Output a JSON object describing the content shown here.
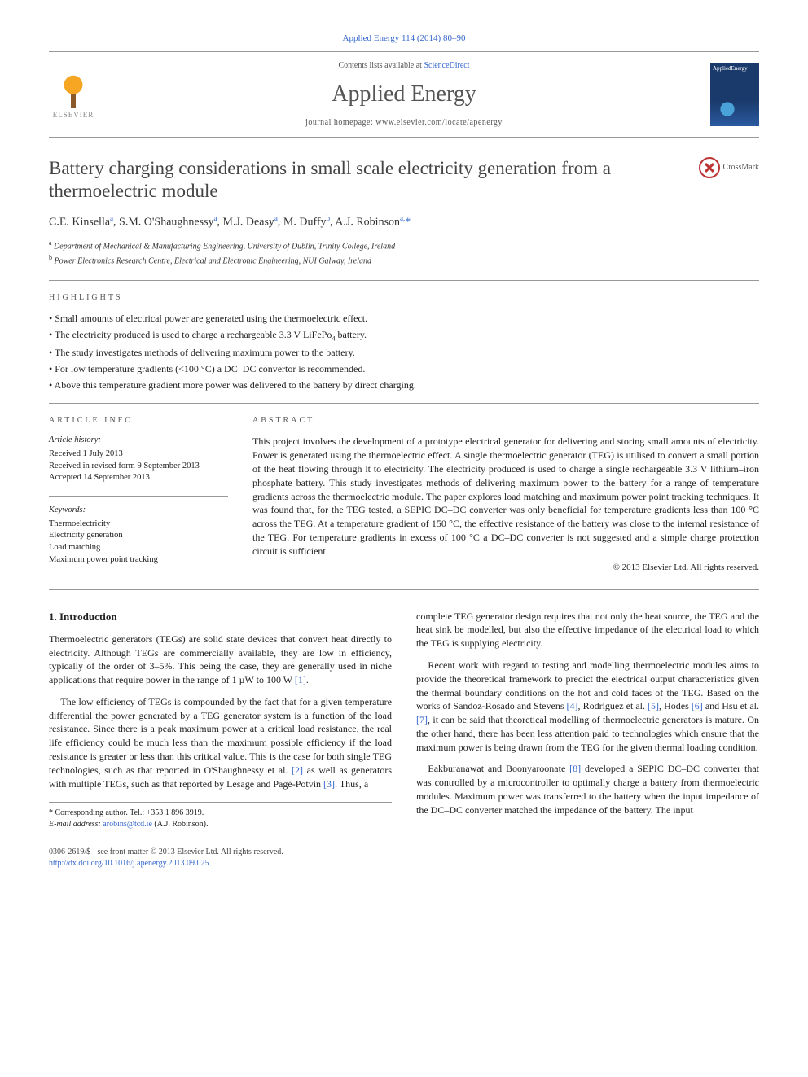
{
  "citation": "Applied Energy 114 (2014) 80–90",
  "header": {
    "publisher_name": "ELSEVIER",
    "contents_prefix": "Contents lists available at ",
    "contents_link": "ScienceDirect",
    "journal": "Applied Energy",
    "homepage_prefix": "journal homepage: ",
    "homepage_url": "www.elsevier.com/locate/apenergy",
    "cover_label": "AppliedEnergy"
  },
  "crossmark_label": "CrossMark",
  "title": "Battery charging considerations in small scale electricity generation from a thermoelectric module",
  "authors_html": "C.E. Kinsella <sup>a</sup>, S.M. O'Shaughnessy <sup>a</sup>, M.J. Deasy <sup>a</sup>, M. Duffy <sup>b</sup>, A.J. Robinson <sup>a,*</sup>",
  "affiliations": [
    {
      "mark": "a",
      "text": "Department of Mechanical & Manufacturing Engineering, University of Dublin, Trinity College, Ireland"
    },
    {
      "mark": "b",
      "text": "Power Electronics Research Centre, Electrical and Electronic Engineering, NUI Galway, Ireland"
    }
  ],
  "highlights": {
    "label": "HIGHLIGHTS",
    "items": [
      "Small amounts of electrical power are generated using the thermoelectric effect.",
      "The electricity produced is used to charge a rechargeable 3.3 V LiFePo₄ battery.",
      "The study investigates methods of delivering maximum power to the battery.",
      "For low temperature gradients (<100 °C) a DC–DC convertor is recommended.",
      "Above this temperature gradient more power was delivered to the battery by direct charging."
    ]
  },
  "info": {
    "label": "ARTICLE INFO",
    "history_hdr": "Article history:",
    "history": [
      "Received 1 July 2013",
      "Received in revised form 9 September 2013",
      "Accepted 14 September 2013"
    ],
    "keywords_hdr": "Keywords:",
    "keywords": [
      "Thermoelectricity",
      "Electricity generation",
      "Load matching",
      "Maximum power point tracking"
    ]
  },
  "abstract": {
    "label": "ABSTRACT",
    "text": "This project involves the development of a prototype electrical generator for delivering and storing small amounts of electricity. Power is generated using the thermoelectric effect. A single thermoelectric generator (TEG) is utilised to convert a small portion of the heat flowing through it to electricity. The electricity produced is used to charge a single rechargeable 3.3 V lithium–iron phosphate battery. This study investigates methods of delivering maximum power to the battery for a range of temperature gradients across the thermoelectric module. The paper explores load matching and maximum power point tracking techniques. It was found that, for the TEG tested, a SEPIC DC–DC converter was only beneficial for temperature gradients less than 100 °C across the TEG. At a temperature gradient of 150 °C, the effective resistance of the battery was close to the internal resistance of the TEG. For temperature gradients in excess of 100 °C a DC–DC converter is not suggested and a simple charge protection circuit is sufficient.",
    "copyright": "© 2013 Elsevier Ltd. All rights reserved."
  },
  "intro": {
    "heading": "1. Introduction",
    "left_paras": [
      "Thermoelectric generators (TEGs) are solid state devices that convert heat directly to electricity. Although TEGs are commercially available, they are low in efficiency, typically of the order of 3–5%. This being the case, they are generally used in niche applications that require power in the range of 1 µW to 100 W [1].",
      "The low efficiency of TEGs is compounded by the fact that for a given temperature differential the power generated by a TEG generator system is a function of the load resistance. Since there is a peak maximum power at a critical load resistance, the real life efficiency could be much less than the maximum possible efficiency if the load resistance is greater or less than this critical value. This is the case for both single TEG technologies, such as that reported in O'Shaughnessy et al. [2] as well as generators with multiple TEGs, such as that reported by Lesage and Pagé-Potvin [3]. Thus, a"
    ],
    "right_paras": [
      "complete TEG generator design requires that not only the heat source, the TEG and the heat sink be modelled, but also the effective impedance of the electrical load to which the TEG is supplying electricity.",
      "Recent work with regard to testing and modelling thermoelectric modules aims to provide the theoretical framework to predict the electrical output characteristics given the thermal boundary conditions on the hot and cold faces of the TEG. Based on the works of Sandoz-Rosado and Stevens [4], Rodríguez et al. [5], Hodes [6] and Hsu et al. [7], it can be said that theoretical modelling of thermoelectric generators is mature. On the other hand, there has been less attention paid to technologies which ensure that the maximum power is being drawn from the TEG for the given thermal loading condition.",
      "Eakburanawat and Boonyaroonate [8] developed a SEPIC DC–DC converter that was controlled by a microcontroller to optimally charge a battery from thermoelectric modules. Maximum power was transferred to the battery when the input impedance of the DC–DC converter matched the impedance of the battery. The input"
    ]
  },
  "footnote": {
    "corr": "* Corresponding author. Tel.: +353 1 896 3919.",
    "email_label": "E-mail address:",
    "email": "arobins@tcd.ie",
    "email_author": "(A.J. Robinson)."
  },
  "footer": {
    "left_line1": "0306-2619/$ - see front matter © 2013 Elsevier Ltd. All rights reserved.",
    "doi": "http://dx.doi.org/10.1016/j.apenergy.2013.09.025"
  },
  "colors": {
    "link": "#3366cc",
    "rule": "#999999",
    "text": "#222222",
    "muted": "#555555",
    "elsevier_orange": "#f6a623",
    "cover_bg": "#1a3a6b"
  },
  "typography": {
    "body_pt": 12,
    "title_pt": 23,
    "journal_pt": 28,
    "small_pt": 10,
    "family": "Georgia, Times New Roman, serif"
  }
}
